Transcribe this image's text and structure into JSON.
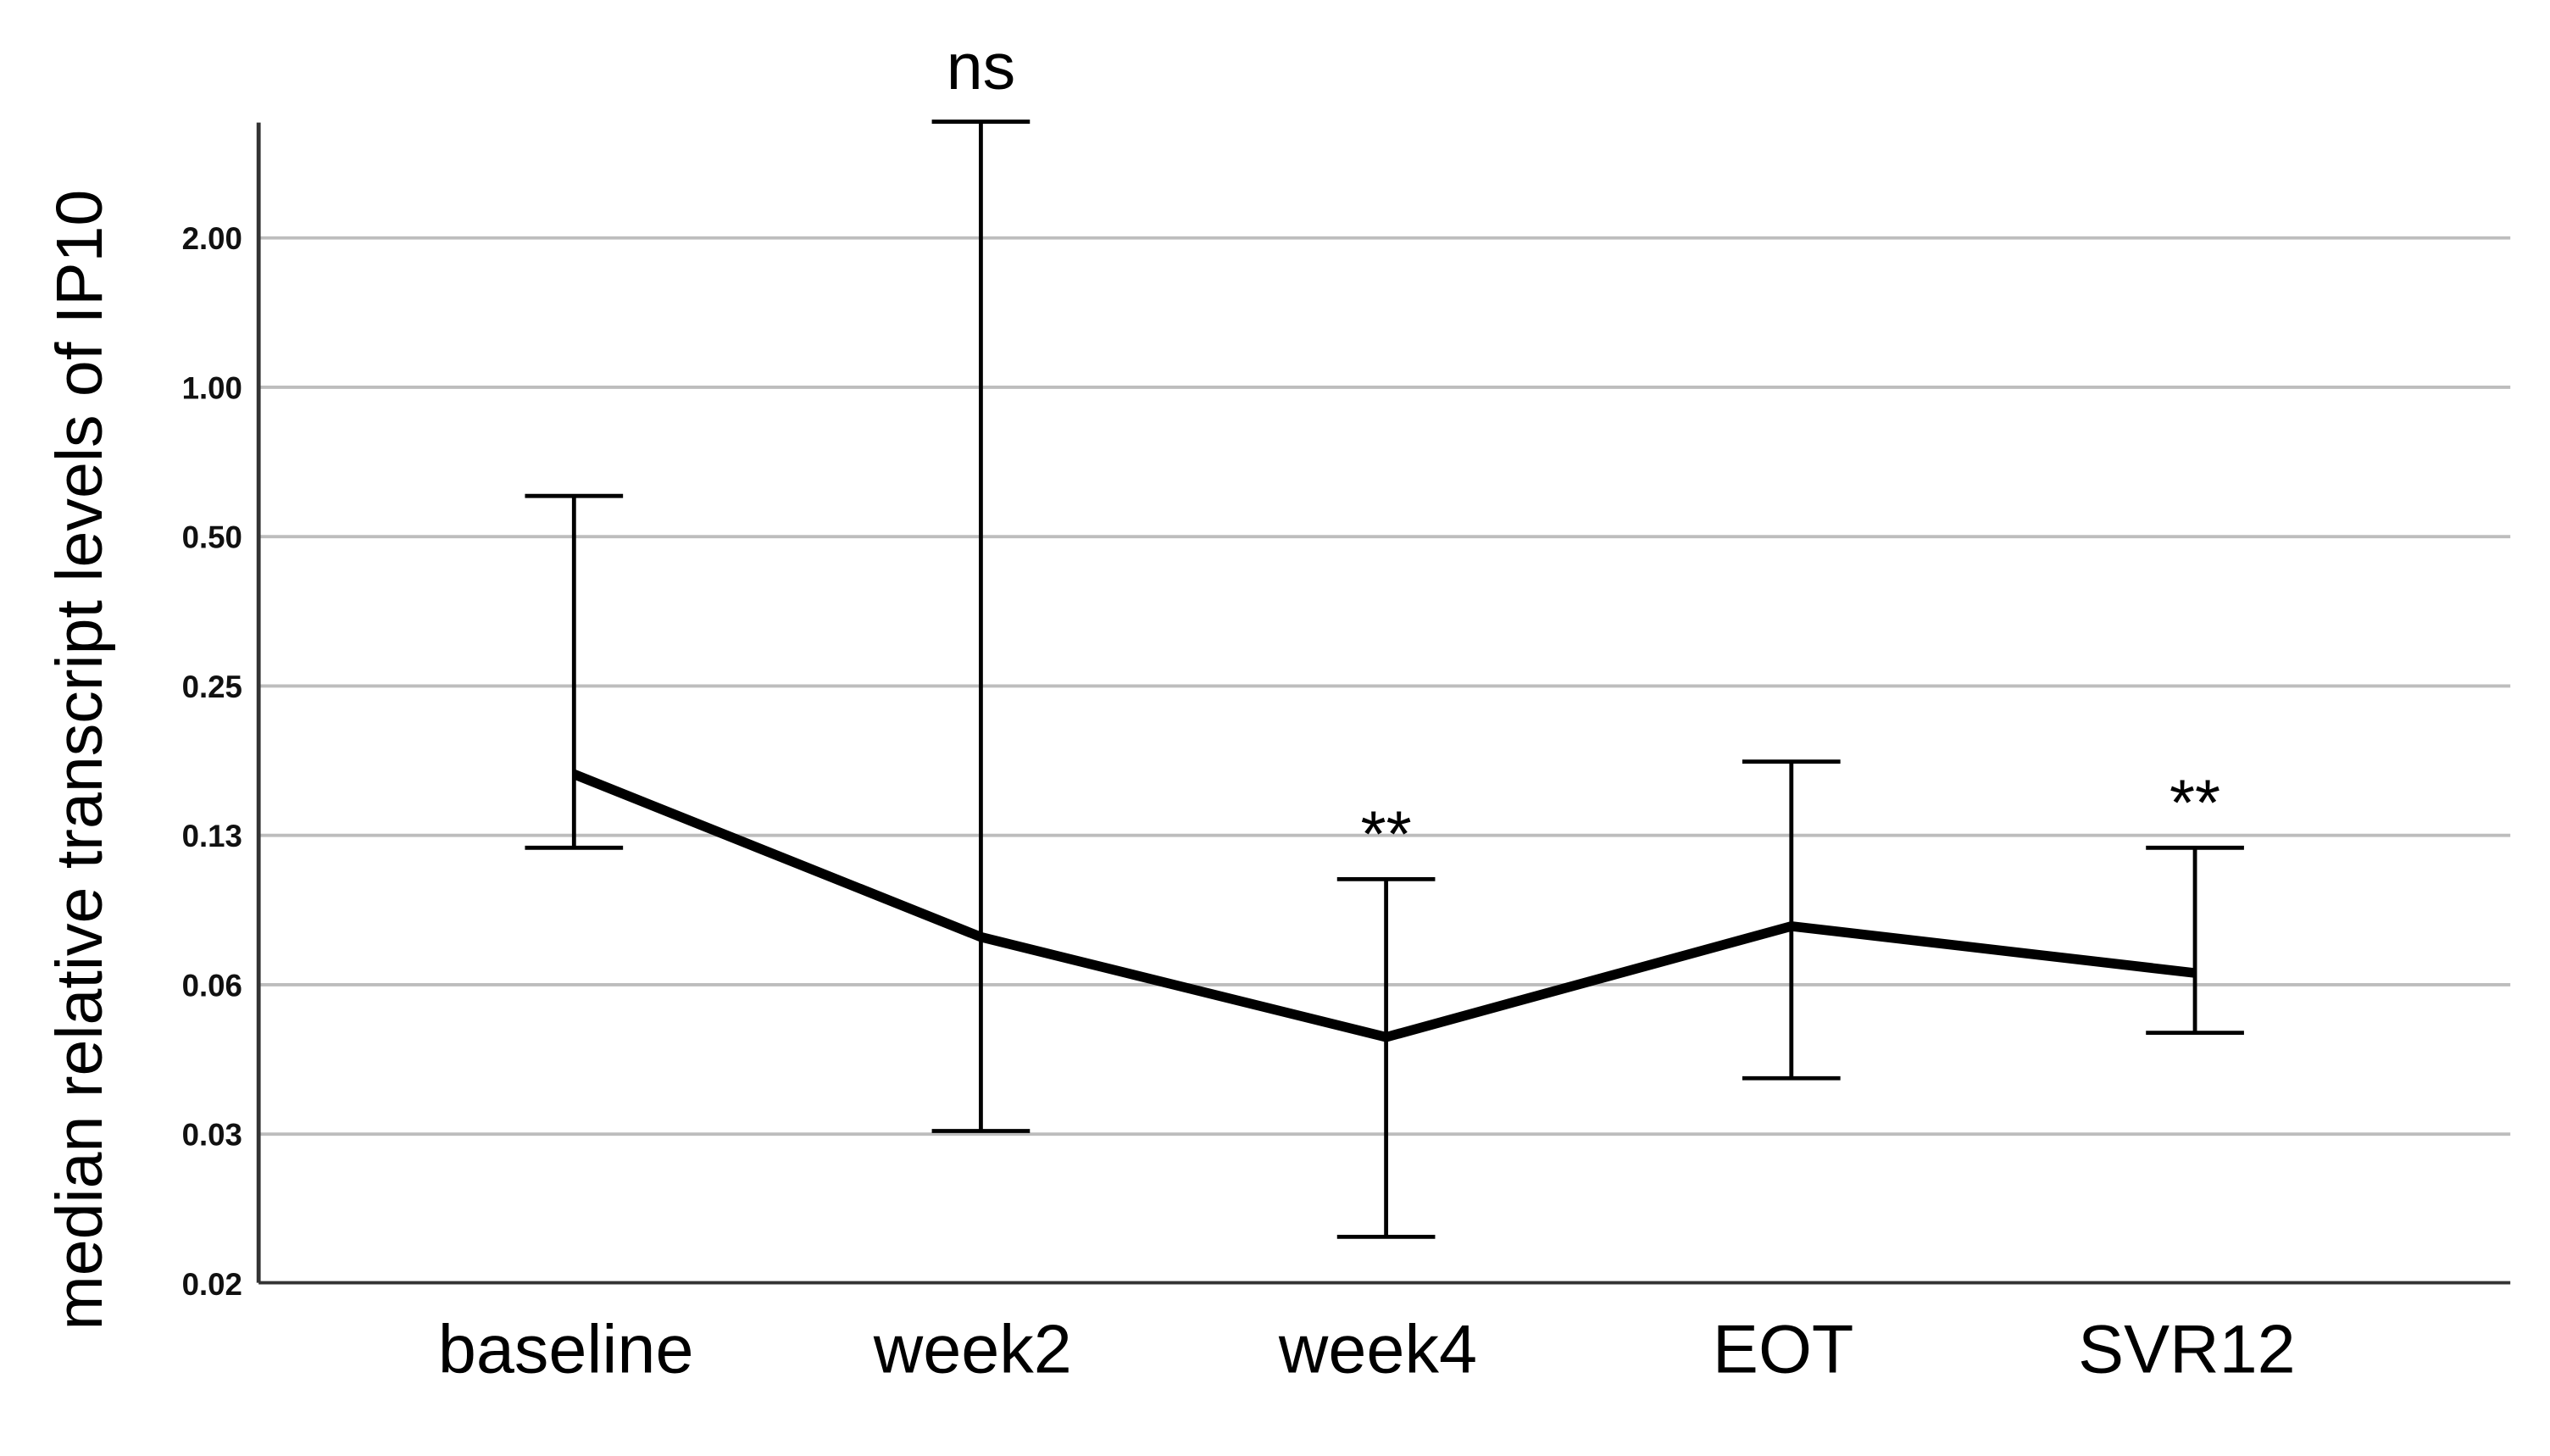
{
  "chart_data": {
    "type": "line",
    "title": "",
    "xlabel": "",
    "ylabel": "median relative transcript levels of IP10",
    "y_scale": "log2",
    "ylim": [
      0.0156,
      3.4
    ],
    "y_ticks": [
      {
        "value": 2,
        "label": "2.00"
      },
      {
        "value": 1,
        "label": "1.00"
      },
      {
        "value": 0.5,
        "label": "0.50"
      },
      {
        "value": 0.25,
        "label": "0.25"
      },
      {
        "value": 0.125,
        "label": "0.13"
      },
      {
        "value": 0.0625,
        "label": "0.06"
      },
      {
        "value": 0.03125,
        "label": "0.03"
      },
      {
        "value": 0.015625,
        "label": "0.02"
      }
    ],
    "grid": "horizontal",
    "categories": [
      "baseline",
      "week2",
      "week4",
      "EOT",
      "SVR12"
    ],
    "median": [
      0.166,
      0.078,
      0.049,
      0.082,
      0.066
    ],
    "error_upper": [
      0.604,
      3.43,
      0.102,
      0.176,
      0.118
    ],
    "error_lower": [
      0.118,
      0.0317,
      0.0194,
      0.0405,
      0.05
    ],
    "annotations": [
      "",
      "ns",
      "**",
      "",
      "**"
    ],
    "line_color": "#000000",
    "grid_color": "#bdbdbd"
  }
}
